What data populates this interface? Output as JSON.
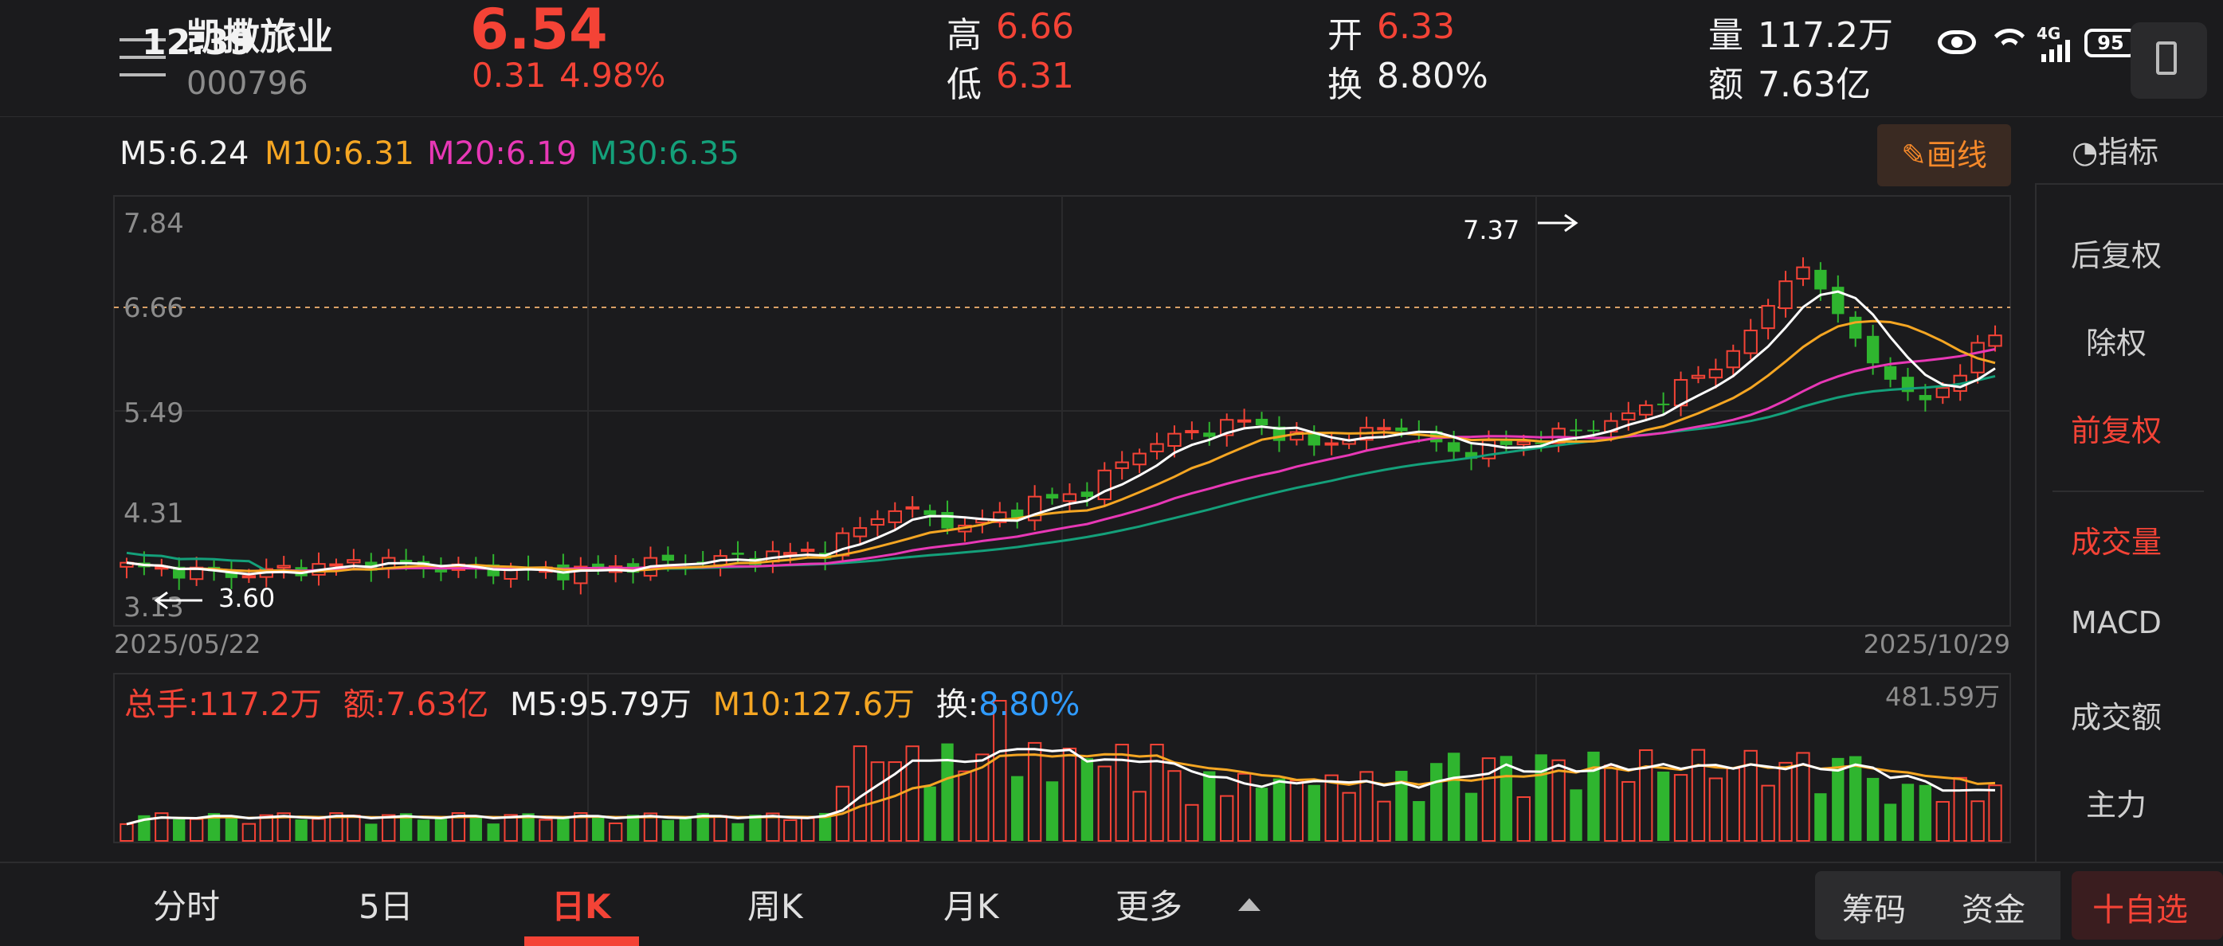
{
  "status": {
    "time": "12:39",
    "battery": "95",
    "signal_label": "4G"
  },
  "header": {
    "stock_name": "凯撒旅业",
    "stock_code": "000796",
    "price": "6.54",
    "change": "0.31",
    "change_pct": "4.98%",
    "high_label": "高",
    "high": "6.66",
    "low_label": "低",
    "low": "6.31",
    "open_label": "开",
    "open": "6.33",
    "turnover_label": "换",
    "turnover": "8.80%",
    "volume_label": "量",
    "volume": "117.2万",
    "amount_label": "额",
    "amount": "7.63亿"
  },
  "ma_legend": {
    "m5": "M5:6.24",
    "m10": "M10:6.31",
    "m20": "M20:6.19",
    "m30": "M30:6.35"
  },
  "draw_button": "画线",
  "indicator_label": "指标",
  "chart_data": {
    "type": "candlestick",
    "price_axis_ticks": [
      "7.84",
      "6.66",
      "5.49",
      "4.31",
      "3.13"
    ],
    "x_start": "2025/05/22",
    "x_end": "2025/10/29",
    "max_annotation": "7.37",
    "min_annotation": "3.60",
    "volume_max_label": "481.59万",
    "colors": {
      "up": "#f44336",
      "down": "#2fb52f",
      "m5": "#ffffff",
      "m10": "#f5a623",
      "m20": "#e838b6",
      "m30": "#14a07a"
    }
  },
  "volume_legend": {
    "total": "总手:117.2万",
    "amount": "额:7.63亿",
    "m5": "M5:95.79万",
    "m10": "M10:127.6万",
    "turnover_label": "换:",
    "turnover_value": "8.80%"
  },
  "sidebar": {
    "items": [
      "后复权",
      "除权",
      "前复权",
      "成交量",
      "MACD",
      "成交额",
      "主力"
    ]
  },
  "tabs": [
    "分时",
    "5日",
    "日K",
    "周K",
    "月K",
    "更多"
  ],
  "bottom_buttons": {
    "chips": "筹码",
    "funds": "资金",
    "add_watch": "十自选"
  }
}
